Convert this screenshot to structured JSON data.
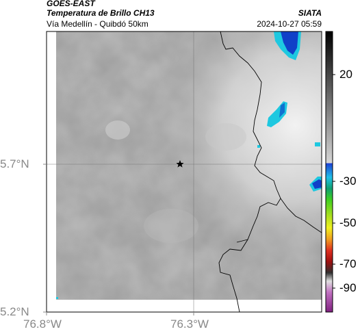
{
  "header": {
    "satellite": "GOES-EAST",
    "product": "Temperatura de Brillo CH13",
    "route": "Vía Medellín - Quibdó 50km",
    "source": "SIATA",
    "datetime": "2024-10-27 05:59"
  },
  "map": {
    "lat_ticks": [
      "5.7°N",
      "5.2°N"
    ],
    "lon_ticks": [
      "76.8°W",
      "76.3°W"
    ],
    "marker_icon": "star-icon"
  },
  "colorbar": {
    "ticks": [
      "20",
      "-30",
      "-50",
      "-70",
      "-90"
    ]
  },
  "colors": {
    "cloud_dark": "#7a7a7a",
    "cloud_light": "#ededed",
    "cold_cloud_blue": "#1040c8",
    "cold_cloud_cyan": "#1ec8e0"
  }
}
